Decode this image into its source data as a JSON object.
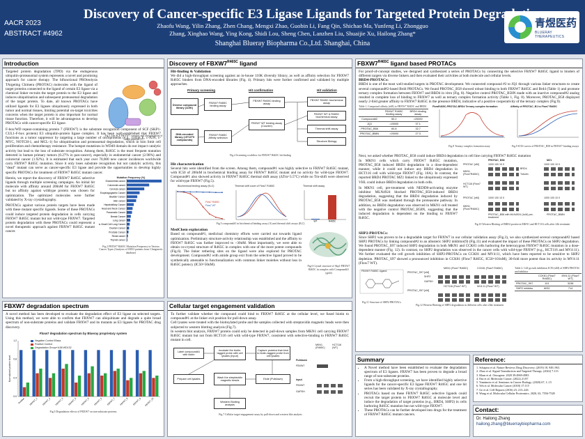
{
  "header": {
    "conf": "AACR 2023",
    "abstract": "ABSTRACT #4962",
    "title": "Discovery of Cancer-specific E3 Ligase Ligands for Targeted Protein Degradation",
    "authors_1": "Zhaofu Wang, Yilin Zhang, Zhen Chang, Mengxi Zhao, Guobin Li, Fang Qin, Shichao Ma, Yunfeng Li, Zhongguo",
    "authors_2": "Zhang, Xinghao Wang, Ying Kong, Shidi Lou, Sheng Chen, Lanzhen Liu, Shuaijie Xu, Hailong Zhang*",
    "affiliation": "Shanghai Blueray Biopharma Co.,Ltd. Shanghai, China",
    "logo_text": "青煜医药",
    "logo_sub": "BLUERAY THERAPEUTICS"
  },
  "intro": {
    "title": "Introduction",
    "p1": "Targeted protein degradation (TPD) via the endogenous ubiquitin-proteasomal system represents a novel and promising approach for cancer therapy. The bifunctional PROteolysis TArgeting Chimera (PROTAC) molecules with the ligand of target proteins connected to the ligand of certain E3 ligase via a chemical linker recruits the target protein to the E3 ligase and induces ubiquitination and subsequent proteasomal degradation of the target protein. To date, all known PROTACs have utilized ligands for E3 ligases ubiquitously expressed in both tumor and normal tissues, limiting potential on-target toxicities concerns when the target protein is also important for normal tissue function. Therefore, it will be advantageous to develop PROTACs with cancer-specific E3 ligase.",
    "fig1_cap": "Fig.1 The SCF FBXW7 complex and ubiquitylation of target proteins [3]",
    "p2": "F-box/WD repeat-containing protein 7 (FBXW7) is the substrate recognition component of SCF (SKP1-CUL1-F-box protein) E3 ubiquitin-protein ligase complex. It has been well-established that FBXW7 functions as a tumor suppressor by targeting a large number of oncoproteins (e.g., cyclin E, c-JUN, c-MYC, NOTCH-1, and MCL-1) for ubiquitination and proteasomal degradation, which in turn limit cell proliferation and chemotherapy resistance. The hotspot mutations in WD40 domain do not impact catalytic activity but lead to the loss of substrate recognition. Among them, R465C is the most frequent mutation detected in human primary tumors (0.27% in pan-cancer), especially in endometrial cancer (2.98%) and colorectal cancer (1.92%). It is estimated that each year over 70,000 new cancer incidences worldwide carry FBXW7 R465C mutation. Since it only loses substrate recognition but not catalytic activity, this \"dead\" mutant can serve as cancer-specific E3 ligase and provide the opportunities to develop highly specific PROTACs for treatment of FBXW7 R465C mutant cancer.",
    "p3": "Herein, we report the discovery of FBXW7 R465C selective ligands through multiple screening campaigns. An initial hit molecule with affinity around 200nM for FBXW7 R465C but no affinity against wildtype protein was chosen for optimization. The optimized molecules were further validated by X-ray crystallography.",
    "p4": "PROTACs against various protein targets have been made with these mutant specific ligands. Some of these PROTACs could induce targeted protein degradation in cells carrying FBXW7 R465C mutant but not wild-type FBXW7. Targeted protein degradation with these PROTACs could represent a novel therapeutic approach against FBXW7 R465C mutant cancer.",
    "fig2_title": "Mutation Frequency (%)",
    "fig2_cap": "Fig.2 FBXW7 R465C Mutation Frequency in Various Cancer Types (Analysis of 65853 patients from Clinigenetic database)"
  },
  "mut_chart": {
    "type": "bar",
    "categories": [
      "Endometrial cancer",
      "Colorectal cancer",
      "Cervical cancer",
      "Esophagogastric Cancer",
      "Bladder Cancer",
      "Skin cancer",
      "Hepatobiliary Cancer",
      "Head and Neck Cancer",
      "Pancreatic Cancer",
      "Breast Cancer",
      "Lung cancer",
      "Non-Small Cell Lung Cancer",
      "Ovarian Cancer",
      "Prostate Cancer",
      "Renal cancer",
      "Thyroid cancer"
    ],
    "values": [
      2.98,
      1.92,
      1.5,
      1.1,
      0.9,
      0.8,
      0.6,
      0.5,
      0.45,
      0.35,
      0.3,
      0.25,
      0.2,
      0.15,
      0.1,
      0.05
    ],
    "color": "#2a5db0"
  },
  "discovery": {
    "title": "Discovery of FBXW7",
    "title_sup": "R465C",
    "title_end": " ligand",
    "sub1": "Hit-finding & Validation",
    "p1": "We did a high-throughput screening against an in-house 110K diversity library, as well as affinity selection for FBXW7 R465C binders from DNA-encoded libraries (Fig. 4). Primary hits were further confirmed and validated by multiple approaches.",
    "flow_primary": "Primary screening",
    "flow_hit": "Hit confirmation",
    "flow_val": "Hit validation",
    "flow_lib1": "Diverse compound library (110K)",
    "flow_lib2": "DNA-encoded library (>9*10^9 compounds)",
    "flow_a": "FBXW7 R465C binding assay",
    "flow_b": "FBXW7 R465C Affinity selection",
    "flow_c": "FBXW7 R465C binding assay",
    "flow_d": "FBXW7 WT binding assay (Counter)",
    "flow_e": "FBXW7 R465C biochemical assay",
    "flow_f": "FBXW7 WT & R465C biochemical assay",
    "flow_g": "Thermal shift assay",
    "flow_h": "Structure Biology",
    "flow_cap": "Fig.4 Screening workflow for FBXW7 R465C hit-finding",
    "sub2": "Hit characterization",
    "p2": "Several hits were identified from the screen. Among them, compound#1 was highly selective to FBXW7 R465C mutant, with IC50 of 200nM in biochemical binding assay for FBXW7 R465C mutant and no activity for wild-type FBXW7. Compound#1 also showed activity in FBXW7 R465C thermal shift assay (ΔTm=3.5°C) while no Tm-shift were observed for wild-type FBXW7 (Fig.5).",
    "chartA_title": "Biochemical binding assay (N=2)",
    "chartB_title": "Thermal shift curve of Flow7 R465C",
    "chartC_title": "Thermal shift assay",
    "fig5_cap": "Fig.5 compound#1 in biochemical binding assay (A) and thermal shift assays (B,C)",
    "sub3": "MedChem exploration",
    "p3": "Based on compound#1, medicinal chemistry efforts were carried out towards ligand optimization. Preliminary structure-activity relationship was established and the affinity to FBXW7 R465C was further improved to ~30nM. Most importantly, we were able to obtain co-crystal structure of R465C in complex with one of the more potent compounds (Fig.6). The linker tethering sites on the ligand were also explored for PROTAC development. Compound#2 with amide group exit from the selective ligand proved to be synthetically amenable to functionalization with common linker moieties without loss in R465C potency (IC50=50nM).",
    "fig6_cap": "Fig.6 Crystal structure of Skp1-FBXW7 R465C in complex with Compound#1 (gold)"
  },
  "biochem_chart": {
    "type": "line",
    "series": [
      {
        "name": "Flow7 R465C",
        "color": "#c0392b",
        "values": [
          100,
          98,
          92,
          75,
          45,
          20,
          8,
          3
        ]
      },
      {
        "name": "Flow7 WT",
        "color": "#2a5db0",
        "values": [
          100,
          100,
          99,
          99,
          98,
          98,
          97,
          97
        ]
      }
    ],
    "xlabel": "Conc(μM)",
    "ylabel": "% inhibition"
  },
  "thermal_bars": {
    "type": "bar",
    "categories": [
      "WT",
      "R465C"
    ],
    "values": [
      0.1,
      3.5
    ],
    "colors": [
      "#2a5db0",
      "#c0392b"
    ]
  },
  "protac": {
    "title": "FBXW7",
    "title_sup": "R465C",
    "title_end": " ligand based PROTACs",
    "p1": "For proof-of-concept studies, we designed and synthesized a series of PROTACs by connecting the selective FBXW7 R465C ligand to binders of different targets via diverse linkers and then evaluated their activities at both molecule and cellular levels.",
    "sub1": "BRD4-PROTACs:",
    "p2": "BRD4 is one of the most well-studied targets in PROTAC development. We connected compound #2 to JQ1 through various linker structures to create several compound#2-based Brd4 PROTACs. We found PROTAC_B58 showed robust binding to both FBXW7 R465C and Brd4 (Table 1) and promote ternary complex formation between FBXW7 and BRD4 in vitro (Fig. 8). Negative control PROTAC_B58N made with an inactive compound#2 analog resulted in complete loss of binding to FBXW7 as well as ternary complex formation activity (Table 1, Fig. 8). Moreover, PROTAC_B58 displayed nearly 2-fold greater affinity to FBXW7 R465C in the presence BRD4, indicative of a positive cooperativity of the ternary complex (Fig.9).",
    "table1_cap": "Table 1. Compound affinity (nM) to FBXW7 R465C and BRD4",
    "table1_h1": "FBXW7 R465C binding assay",
    "table1_h2": "BRD4 binding assay",
    "table1_rows": [
      [
        "Compound#2",
        "50.2",
        ">20000"
      ],
      [
        "JQ1",
        ">20000",
        "37.1"
      ],
      [
        "PROTAC_B58",
        "60.8",
        "32.7"
      ],
      [
        "PROTAC_B58N",
        ">20000",
        "27.3"
      ]
    ],
    "fig8_title": "FlowR465C-PROTAC-BRD4 Ternary complex formation",
    "fig8_cap": "Fig.8 Ternary complex formation assay",
    "fig9_title": "Affinity of PROTAC_B1 to Flow7 R465C",
    "fig9_cap": "Fig.9 IC50 curves of PROTAC_B58 in FBXW7 binding assays",
    "p3": "Next, we asked whether PROTAC_B58 could induce BRD4 degradation in cell line carrying FBXW7 R465C mutation",
    "p4": "In MKN1 cells which carry FBXW7 R465C mutation, PROTAC_B58 induced BRD4 degradation in a dose-dependent manner, while it could not induce any BRD4 degradation in HCT116 cell with wild-type FBXW7 (Fig. 10A). In contrast, the reported BRD4 PROTAC MZ1 linked to the ubiquitously expressed VHL could induce BRD4 degradation in both cells.",
    "p5": "In MKN1 cell, pre-treatment with NEDD8-activating enzyme inhibitor MLN4924 blocked PROTAC_B58-induced BRD4 degradation, suggesting that the BRD4 degradation induced by PROTAC_B58 was mediated through the proteasome pathway. In addition, no BRD4 degradation was observed in MKN1 cell treated with the negative control PROTAC_B58N, suggesting that the induced degradation is dependent on the binding to FBXW7 R465C.",
    "wb_label": "PROTAC [nM]",
    "wb_doses": "1000  100  10   0",
    "wb_mkn1": "MKN1 (Flow7R465C)",
    "wb_hct": "HCT116 (Flow7 WT)",
    "wb_brd4": "BRD4",
    "wb_tub": "Tubulin",
    "wb_b58": "PROTAC_B58",
    "wb_mz1": "MZ1",
    "wb_mln": "PROTAC_B58 with MLN4924 (1uM) pre-treatment",
    "wb_b58n": "PROTAC_B58N",
    "fig10_cap": "Fig.10 Western Blotting of BRD4 protein in MKN1 and HCT116 cells after 24h treatment",
    "sub2": "SHP2-PROTACs:",
    "p6": "Since SHP2 was proven to be a degradable target for FBXW7 in our cellular validation assay (Fig.3), we also synthesized several compound#2 based SHP2 PROTACs by linking compound#2 to an allosteric SHP2 inhibitor(9) (Fig.11) and evaluated the impact of these PROTACs on SHP2 degradation. We found PROTAC_S97 induced SHP2 degradation in both MKN1 and CCK81 cells harboring the heterozygous FBXW7 R465C mutation in a dose-dependent manner (Fig. 12). In contrast, no SHP2 degradation was observed in the cancer cells with wild-type FBXW7 (e.g., HCT116 and MV4:11). We further evaluated the cell growth inhibition of SHP2-PROTACs on CCK81 and MV4:11, which have been reported to be sensitive to SHP2 depletion. PROTAC_S97 showed a pronounced inhibition in CCK81 (Flow7 R465C, IC50=101nM), 30-fold more potent than its activity in MV4:11 (Flow7 WT).",
    "fig11_cap": "Fig.11 Structure of SHP2-PROTACs",
    "fig11_label": "FBXW7 R465C Ligand",
    "fig11_label2": "Compound#2",
    "shp2_row1": "PROTAC_S97 [nM]",
    "shp2_row2": "PROTAC_S97 [nM]",
    "shp2_cells_a": "MKN1 (Flow7 R465C)",
    "shp2_cells_b": "CCK81 (Flow7 R465C)",
    "shp2_cells_c": "HCT116 (Flow7 WT)",
    "shp2_cells_d": "MV4:11 (Flow7 WT)",
    "shp2_lbl": "SHP2",
    "gapdh_lbl": "GAPDH",
    "fig12_cap": "Fig.12 Western Blotting of SHP2 degradation in different cells after 24hr treatment",
    "table2_cap": "Table 2. Cell growth inhibition IC50 (nM) of SHP2 PROTAC and inhibitor",
    "table2_h1": "CCK81 (Flow7 R465C)",
    "table2_h2": "MV4:11 (Flow7 WT)",
    "table2_rows": [
      [
        "PROTAC_S97",
        "101",
        "3238"
      ],
      [
        "SHP2 inhibitor",
        "6032",
        "714"
      ]
    ]
  },
  "degr": {
    "title": "FBXW7 degradation spectrum",
    "p1": "A novel method has been developed to evaluate the degradation effect of E3 ligase on selected targets. Using this method, we were able to confirm that FBXW7 can ubiquitinate and degrade a quite broad spectrum of non-substrate proteins and validate FBXW7 and its mutants as E3 ligases for PROTAC drug discovery.",
    "chart_title": "Fbxw7 degradation spectrum by Blueray proprietary system",
    "legend": [
      "Negative Control Elissa",
      "Positive Control",
      "Degradation Group+IL58 WD132"
    ],
    "legend_colors": [
      "#2a5db0",
      "#c0392b",
      "#27a844"
    ],
    "ylabel": "Normalized protein level",
    "cap": "Fig.3 Degradation effects of FBXW7 on non-substrate proteins"
  },
  "degr_chart": {
    "type": "bar",
    "categories": [
      "Positive",
      "FBXW7_1",
      "FBXW7_2",
      "FBXW7_3",
      "FBXW7_4",
      "FBXW7_5",
      "FBXW7_6",
      "FBXW7_7",
      "FBXW7_8",
      "FBXW7_9",
      "FBXW7_10"
    ],
    "series": [
      {
        "name": "Negative Control Elissa",
        "values": [
          1.0,
          1.0,
          1.0,
          1.0,
          1.0,
          1.0,
          1.0,
          1.0,
          1.0,
          1.0,
          1.0
        ]
      },
      {
        "name": "Positive Control",
        "values": [
          0.2,
          0.5,
          0.4,
          0.6,
          0.3,
          0.5,
          0.45,
          0.55,
          0.35,
          0.5,
          0.4
        ]
      },
      {
        "name": "Degradation Group+IL58 WD132",
        "values": [
          0.3,
          0.6,
          0.5,
          0.7,
          0.45,
          0.65,
          0.5,
          0.6,
          0.4,
          0.55,
          0.45
        ]
      }
    ],
    "ylim": [
      0,
      1.2
    ]
  },
  "cellular": {
    "title": "Cellular target engagement validation",
    "p1": "To further validate whether the compound could bind to FBXW7 R465C at the cellular level, we fused biotin to compound#1 at the linker exit position for pull-down assay.",
    "p2": "Cell lysates were treated with the biotinylated probe and the samples collected with streptavidin magnetic beads were then subjected to western blotting analysis (Fig.7).",
    "p3": "In western blot analysis, FBXW7 protein could only be detected in pull-down samples from MKN1 cell carrying FBXW7 R465C mutant but not from HCT116 cell with wild-type FBXW7, consistent with selective-binding to FBXW7 R465C mutant in cell.",
    "f1": "Label compound#1 with biotin",
    "f2": "Incubate the biotin-tagged probe with cell lysates (Input)",
    "f3": "Capture proteins that bind to biotin-tagged probe from cell lysates",
    "f4": "Prepare cell lysates",
    "f5": "Wash the streptavidin magnetic beads",
    "f6": "Elute (Pulldown)",
    "f7": "Western Blotting analysis",
    "wb_c1": "MKN1 (R465C)",
    "wb_c2": "HCT116 (WT)",
    "wb_pull": "Pulldown",
    "wb_input": "Input",
    "wb_fbxw7": "FBXW7",
    "wb_gapdh": "GAPDH",
    "cap": "Fig.7 Cellular target engagement assay by pull-down and western blot analysis"
  },
  "summary": {
    "title": "Summary",
    "items": [
      "A Novel method have been established to evaluate the degradation spectrum of E3 ligases. FBXW7 has been proven to degrade a broad range of non-substrate proteins.",
      "From a high-throughput screening, we have identified highly selective ligands for the cancer-specific E3 ligase FBXW7 R465C and one hit series has been validated by X-ray crystallography.",
      "PROTACs based on these FBXW7 R465C selective ligands could recruit the target protein to FBXW7 R465C at molecule level and induce the degradation of target proteins (e.g., BRD4, SHP2) in cells harboring R465C mutation but not wild-type FBXW7.",
      "These PROTACs can be further developed into drugs for the treatment of FBXW7 R465C mutant cancers."
    ]
  },
  "refs": {
    "title": "Reference:",
    "items": [
      "1.  Schapira et al. Nature Reviews Drug Discovery. (2019) 18, 949–963.",
      "2.  Zhao et al. Signal Transduction and Targeted Therapy. (2022) 7:113",
      "3.  Khan et al. Oncogene. 2020 39:4969-4983",
      "4.  Fan et al. Molecular Cancer. (2022) 21:87",
      "5.  Yumimoto et al. Seminars in Cancer Biology. (2020) 67, 1–15",
      "6.  Yeh et al. Molecular Cancer (2018) 17:115",
      "7.  Ge et al. Cell Reports (2016) 23, 213–226",
      "8.  Wang et al. Molecular Cellular Proteomics. 2020, 63, 7556-7528"
    ]
  },
  "contact": {
    "title": "Contact:",
    "name": "Dr. Hailong Zhang",
    "email": "hailong.zhang@bluerraybiopharma.com"
  }
}
